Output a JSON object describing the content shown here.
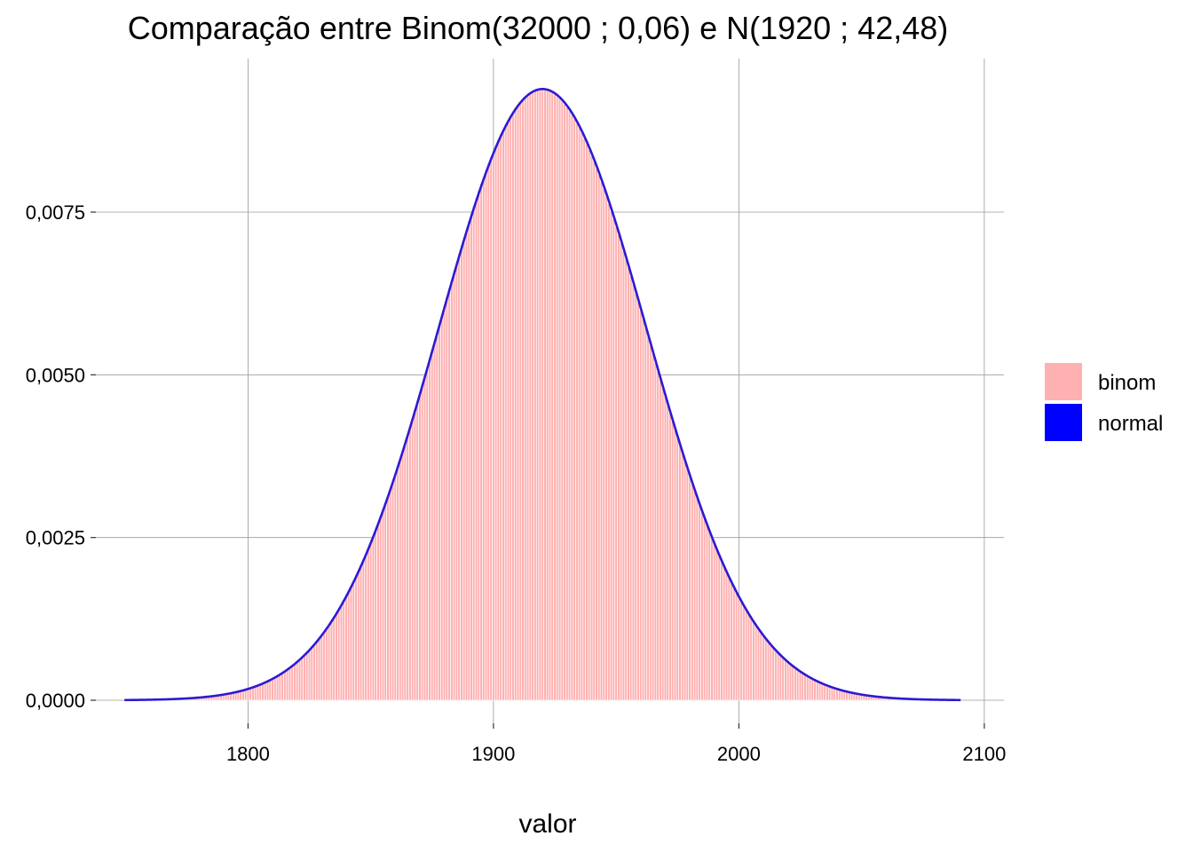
{
  "chart_data": {
    "type": "bar",
    "title": "Comparação entre Binom(32000 ; 0,06)  e  N(1920 ; 42,48)",
    "xlabel": "valor",
    "ylabel": "",
    "xlim": [
      1738,
      2108
    ],
    "ylim": [
      0,
      0.0095
    ],
    "grid": true,
    "legend_position": "right",
    "x_ticks": [
      1800,
      1900,
      2000,
      2100
    ],
    "x_tick_labels": [
      "1800",
      "1900",
      "2000",
      "2100"
    ],
    "y_ticks": [
      0,
      0.0025,
      0.005,
      0.0075
    ],
    "y_tick_labels": [
      "0,0000",
      "0,0025",
      "0,0050",
      "0,0075"
    ],
    "binomial": {
      "n": 32000,
      "p": 0.06,
      "x_from": 1750,
      "x_to": 2090
    },
    "normal": {
      "mean": 1920,
      "sd": 42.48,
      "x_from": 1750,
      "x_to": 2090
    },
    "series": [
      {
        "name": "binom",
        "kind": "bar",
        "color": "#FFB0B0"
      },
      {
        "name": "normal",
        "kind": "line",
        "color": "#0000FF"
      }
    ]
  },
  "colors": {
    "binom_fill": "#FFB0B0",
    "binom_border": "#FFFFFF",
    "normal_line": "#0000FF",
    "normal_line_render": "#2A1AD6",
    "grid": "#9A9A9A"
  }
}
